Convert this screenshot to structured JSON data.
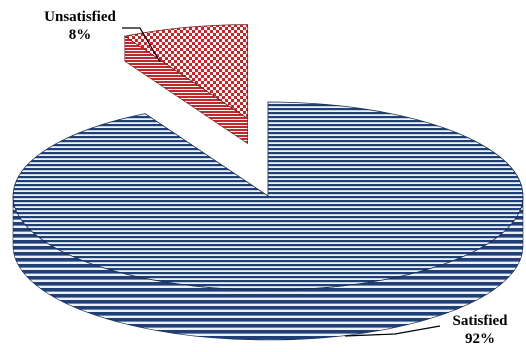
{
  "chart_data": {
    "type": "pie",
    "style": "3d-exploded",
    "title": "",
    "slices": [
      {
        "label": "Satisfied",
        "value": 92,
        "display": "92%",
        "color": "#1f3f77",
        "highlight": "#eef2f8",
        "pattern": "horizontal-stripes"
      },
      {
        "label": "Unsatisfied",
        "value": 8,
        "display": "8%",
        "color": "#c0282c",
        "highlight": "#f7f7f7",
        "pattern": "checkered",
        "exploded": true
      }
    ],
    "legend": "none"
  }
}
